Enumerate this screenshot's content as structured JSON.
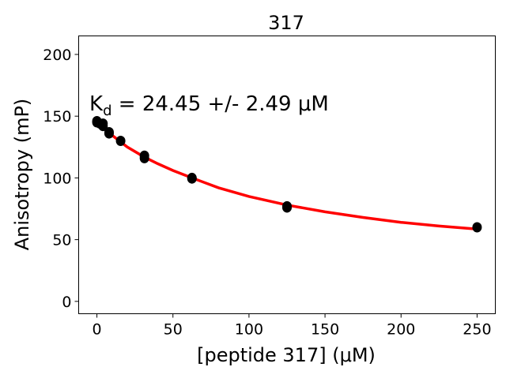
{
  "chart_data": {
    "type": "scatter",
    "title": "317",
    "xlabel": "[peptide 317] (μM)",
    "ylabel": "Anisotropy (mP)",
    "xlim": [
      -12,
      262
    ],
    "ylim": [
      -10,
      215
    ],
    "xticks": [
      0,
      50,
      100,
      150,
      200,
      250
    ],
    "yticks": [
      0,
      50,
      100,
      150,
      200
    ],
    "grid": false,
    "annotation": {
      "prefix": "K",
      "sub": "d",
      "text": " = 24.45 +/- 2.49 μM"
    },
    "marker_color": "#000000",
    "fit_color": "#ff0000",
    "points": [
      {
        "x": 0,
        "y": 146
      },
      {
        "x": 0,
        "y": 145
      },
      {
        "x": 2,
        "y": 144
      },
      {
        "x": 4,
        "y": 144
      },
      {
        "x": 4,
        "y": 142
      },
      {
        "x": 8,
        "y": 137
      },
      {
        "x": 8,
        "y": 136
      },
      {
        "x": 15.6,
        "y": 130
      },
      {
        "x": 31.25,
        "y": 118
      },
      {
        "x": 31.25,
        "y": 116
      },
      {
        "x": 62.5,
        "y": 100
      },
      {
        "x": 62.5,
        "y": 99.5
      },
      {
        "x": 125,
        "y": 77
      },
      {
        "x": 125,
        "y": 76
      },
      {
        "x": 250,
        "y": 60
      }
    ],
    "fit_curve": {
      "x": [
        0,
        5,
        10,
        20,
        31,
        40,
        50,
        62.5,
        80,
        100,
        125,
        150,
        175,
        200,
        225,
        250
      ],
      "y": [
        146,
        140,
        134.5,
        125,
        117,
        111.5,
        106,
        100,
        92,
        85,
        78,
        72.5,
        68,
        64,
        61,
        58.5
      ]
    }
  }
}
